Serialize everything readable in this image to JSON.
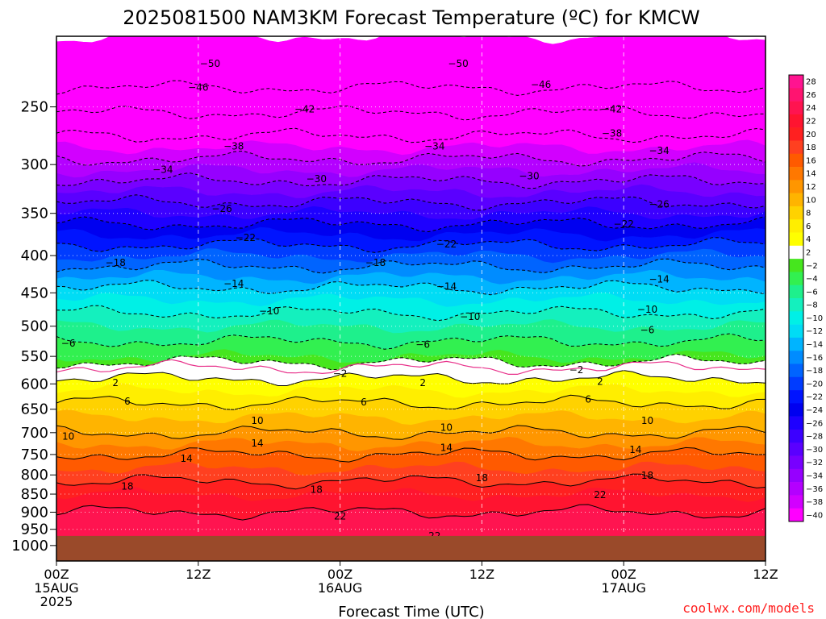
{
  "chart_data": {
    "type": "heatmap",
    "title": "2025081500 NAM3KM Forecast Temperature (ºC) for KMCW",
    "xlabel": "Forecast Time (UTC)",
    "ylabel": "",
    "credit": "coolwx.com/models",
    "y_axis": {
      "quantity": "pressure (hPa)",
      "ticks": [
        250,
        300,
        350,
        400,
        450,
        500,
        550,
        600,
        650,
        700,
        750,
        800,
        850,
        900,
        950,
        1000
      ],
      "top_pressure": 200,
      "scale": "log",
      "grid": "dotted"
    },
    "x_axis": {
      "ticks": [
        {
          "h": 0,
          "lines": [
            "00Z",
            "15AUG",
            "2025"
          ]
        },
        {
          "h": 12,
          "lines": [
            "12Z"
          ]
        },
        {
          "h": 24,
          "lines": [
            "00Z",
            "16AUG"
          ]
        },
        {
          "h": 36,
          "lines": [
            "12Z"
          ]
        },
        {
          "h": 48,
          "lines": [
            "00Z",
            "17AUG"
          ]
        },
        {
          "h": 60,
          "lines": [
            "12Z"
          ]
        }
      ],
      "range_hours": [
        0,
        60
      ],
      "grid": "dashed"
    },
    "surface_pressure_hPa": 970,
    "colorbar": {
      "labels": [
        "28",
        "26",
        "24",
        "22",
        "20",
        "18",
        "16",
        "14",
        "12",
        "10",
        "8",
        "6",
        "4",
        "2",
        "−2",
        "−4",
        "−6",
        "−8",
        "−10",
        "−12",
        "−14",
        "−16",
        "−18",
        "−20",
        "−22",
        "−24",
        "−26",
        "−28",
        "−30",
        "−32",
        "−34",
        "−36",
        "−38",
        "−40"
      ],
      "bands": [
        {
          "lo": 26,
          "hi": 30,
          "color": "#ff1490"
        },
        {
          "lo": 24,
          "hi": 26,
          "color": "#ff1470"
        },
        {
          "lo": 22,
          "hi": 24,
          "color": "#ff1450"
        },
        {
          "lo": 20,
          "hi": 22,
          "color": "#ff1430"
        },
        {
          "lo": 18,
          "hi": 20,
          "color": "#ff2020"
        },
        {
          "lo": 16,
          "hi": 18,
          "color": "#ff4020"
        },
        {
          "lo": 14,
          "hi": 16,
          "color": "#ff5a00"
        },
        {
          "lo": 12,
          "hi": 14,
          "color": "#ff7800"
        },
        {
          "lo": 10,
          "hi": 12,
          "color": "#ff9600"
        },
        {
          "lo": 8,
          "hi": 10,
          "color": "#ffb400"
        },
        {
          "lo": 6,
          "hi": 8,
          "color": "#ffd200"
        },
        {
          "lo": 4,
          "hi": 6,
          "color": "#ffee00"
        },
        {
          "lo": 2,
          "hi": 4,
          "color": "#ffff00"
        },
        {
          "lo": -2,
          "hi": 2,
          "color": "#ffffff"
        },
        {
          "lo": -4,
          "hi": -2,
          "color": "#46e61e"
        },
        {
          "lo": -6,
          "hi": -4,
          "color": "#32f050"
        },
        {
          "lo": -8,
          "hi": -6,
          "color": "#1ef08c"
        },
        {
          "lo": -10,
          "hi": -8,
          "color": "#14f0be"
        },
        {
          "lo": -12,
          "hi": -10,
          "color": "#00f0e6"
        },
        {
          "lo": -14,
          "hi": -12,
          "color": "#00dcf5"
        },
        {
          "lo": -16,
          "hi": -14,
          "color": "#00b4ff"
        },
        {
          "lo": -18,
          "hi": -16,
          "color": "#008cff"
        },
        {
          "lo": -20,
          "hi": -18,
          "color": "#0064ff"
        },
        {
          "lo": -22,
          "hi": -20,
          "color": "#003cff"
        },
        {
          "lo": -24,
          "hi": -22,
          "color": "#0014ff"
        },
        {
          "lo": -26,
          "hi": -24,
          "color": "#0000f0"
        },
        {
          "lo": -28,
          "hi": -26,
          "color": "#1e00ff"
        },
        {
          "lo": -30,
          "hi": -28,
          "color": "#3c00ff"
        },
        {
          "lo": -32,
          "hi": -30,
          "color": "#5a00ff"
        },
        {
          "lo": -34,
          "hi": -32,
          "color": "#7800ff"
        },
        {
          "lo": -36,
          "hi": -34,
          "color": "#9600ff"
        },
        {
          "lo": -38,
          "hi": -36,
          "color": "#b400ff"
        },
        {
          "lo": -40,
          "hi": -38,
          "color": "#d200ff"
        },
        {
          "lo": -70,
          "hi": -40,
          "color": "#ff00ff"
        }
      ]
    },
    "ground_color": "#9a4a2a",
    "profile_hour0": [
      {
        "p": 200,
        "t": -58
      },
      {
        "p": 250,
        "t": -47
      },
      {
        "p": 300,
        "t": -37
      },
      {
        "p": 350,
        "t": -28
      },
      {
        "p": 400,
        "t": -20
      },
      {
        "p": 450,
        "t": -13
      },
      {
        "p": 500,
        "t": -8
      },
      {
        "p": 550,
        "t": -4
      },
      {
        "p": 570,
        "t": 0
      },
      {
        "p": 600,
        "t": 3
      },
      {
        "p": 650,
        "t": 7
      },
      {
        "p": 700,
        "t": 10
      },
      {
        "p": 750,
        "t": 14
      },
      {
        "p": 800,
        "t": 17
      },
      {
        "p": 850,
        "t": 20
      },
      {
        "p": 900,
        "t": 22
      },
      {
        "p": 950,
        "t": 23
      },
      {
        "p": 1000,
        "t": 24
      }
    ],
    "contour_labels": [
      {
        "t": "50",
        "h": 13,
        "p": 218,
        "dashed": true
      },
      {
        "t": "50",
        "h": 34,
        "p": 218,
        "dashed": true
      },
      {
        "t": "46",
        "h": 12,
        "p": 235,
        "dashed": true
      },
      {
        "t": "46",
        "h": 41,
        "p": 233,
        "dashed": true
      },
      {
        "t": "42",
        "h": 21,
        "p": 252,
        "dashed": true
      },
      {
        "t": "42",
        "h": 47,
        "p": 252,
        "dashed": true
      },
      {
        "t": "38",
        "h": 47,
        "p": 272,
        "dashed": true
      },
      {
        "t": "38",
        "h": 15,
        "p": 283,
        "dashed": true
      },
      {
        "t": "34",
        "h": 32,
        "p": 283,
        "dashed": true
      },
      {
        "t": "34",
        "h": 51,
        "p": 287,
        "dashed": true
      },
      {
        "t": "34",
        "h": 9,
        "p": 305,
        "dashed": true
      },
      {
        "t": "30",
        "h": 22,
        "p": 314,
        "dashed": true
      },
      {
        "t": "30",
        "h": 40,
        "p": 311,
        "dashed": true
      },
      {
        "t": "26",
        "h": 14,
        "p": 345,
        "dashed": true
      },
      {
        "t": "26",
        "h": 51,
        "p": 340,
        "dashed": true
      },
      {
        "t": "22",
        "h": 48,
        "p": 362,
        "dashed": true
      },
      {
        "t": "22",
        "h": 16,
        "p": 378,
        "dashed": true
      },
      {
        "t": "22",
        "h": 33,
        "p": 386,
        "dashed": true
      },
      {
        "t": "18",
        "h": 5,
        "p": 409,
        "dashed": true
      },
      {
        "t": "18",
        "h": 27,
        "p": 409,
        "dashed": true
      },
      {
        "t": "14",
        "h": 51,
        "p": 431,
        "dashed": true
      },
      {
        "t": "14",
        "h": 15,
        "p": 437,
        "dashed": true
      },
      {
        "t": "14",
        "h": 33,
        "p": 441,
        "dashed": true
      },
      {
        "t": "10",
        "h": 18,
        "p": 477,
        "dashed": true
      },
      {
        "t": "10",
        "h": 35,
        "p": 485,
        "dashed": true
      },
      {
        "t": "10",
        "h": 50,
        "p": 474,
        "dashed": true
      },
      {
        "t": "6",
        "h": 1,
        "p": 528,
        "dashed": true
      },
      {
        "t": "6",
        "h": 31,
        "p": 530,
        "dashed": true
      },
      {
        "t": "6",
        "h": 50,
        "p": 506,
        "dashed": true
      },
      {
        "t": "2",
        "h": 24,
        "p": 581,
        "dashed": true
      },
      {
        "t": "2",
        "h": 44,
        "p": 574,
        "dashed": true
      },
      {
        "t": "2",
        "h": 5,
        "p": 598,
        "dashed": false
      },
      {
        "t": "2",
        "h": 31,
        "p": 598,
        "dashed": false
      },
      {
        "t": "2",
        "h": 46,
        "p": 596,
        "dashed": false
      },
      {
        "t": "6",
        "h": 6,
        "p": 634,
        "dashed": false
      },
      {
        "t": "6",
        "h": 26,
        "p": 636,
        "dashed": false
      },
      {
        "t": "6",
        "h": 45,
        "p": 630,
        "dashed": false
      },
      {
        "t": "10",
        "h": 17,
        "p": 674,
        "dashed": false
      },
      {
        "t": "10",
        "h": 33,
        "p": 689,
        "dashed": false
      },
      {
        "t": "10",
        "h": 50,
        "p": 674,
        "dashed": false
      },
      {
        "t": "10",
        "h": 1,
        "p": 708,
        "dashed": false
      },
      {
        "t": "14",
        "h": 17,
        "p": 724,
        "dashed": false
      },
      {
        "t": "14",
        "h": 33,
        "p": 734,
        "dashed": false
      },
      {
        "t": "14",
        "h": 11,
        "p": 760,
        "dashed": false
      },
      {
        "t": "14",
        "h": 49,
        "p": 739,
        "dashed": false
      },
      {
        "t": "18",
        "h": 36,
        "p": 808,
        "dashed": false
      },
      {
        "t": "18",
        "h": 50,
        "p": 802,
        "dashed": false
      },
      {
        "t": "18",
        "h": 6,
        "p": 830,
        "dashed": false
      },
      {
        "t": "18",
        "h": 22,
        "p": 838,
        "dashed": false
      },
      {
        "t": "22",
        "h": 46,
        "p": 852,
        "dashed": false
      },
      {
        "t": "22",
        "h": 24,
        "p": 912,
        "dashed": false
      },
      {
        "t": "22",
        "h": 32,
        "p": 970,
        "dashed": false
      }
    ]
  }
}
